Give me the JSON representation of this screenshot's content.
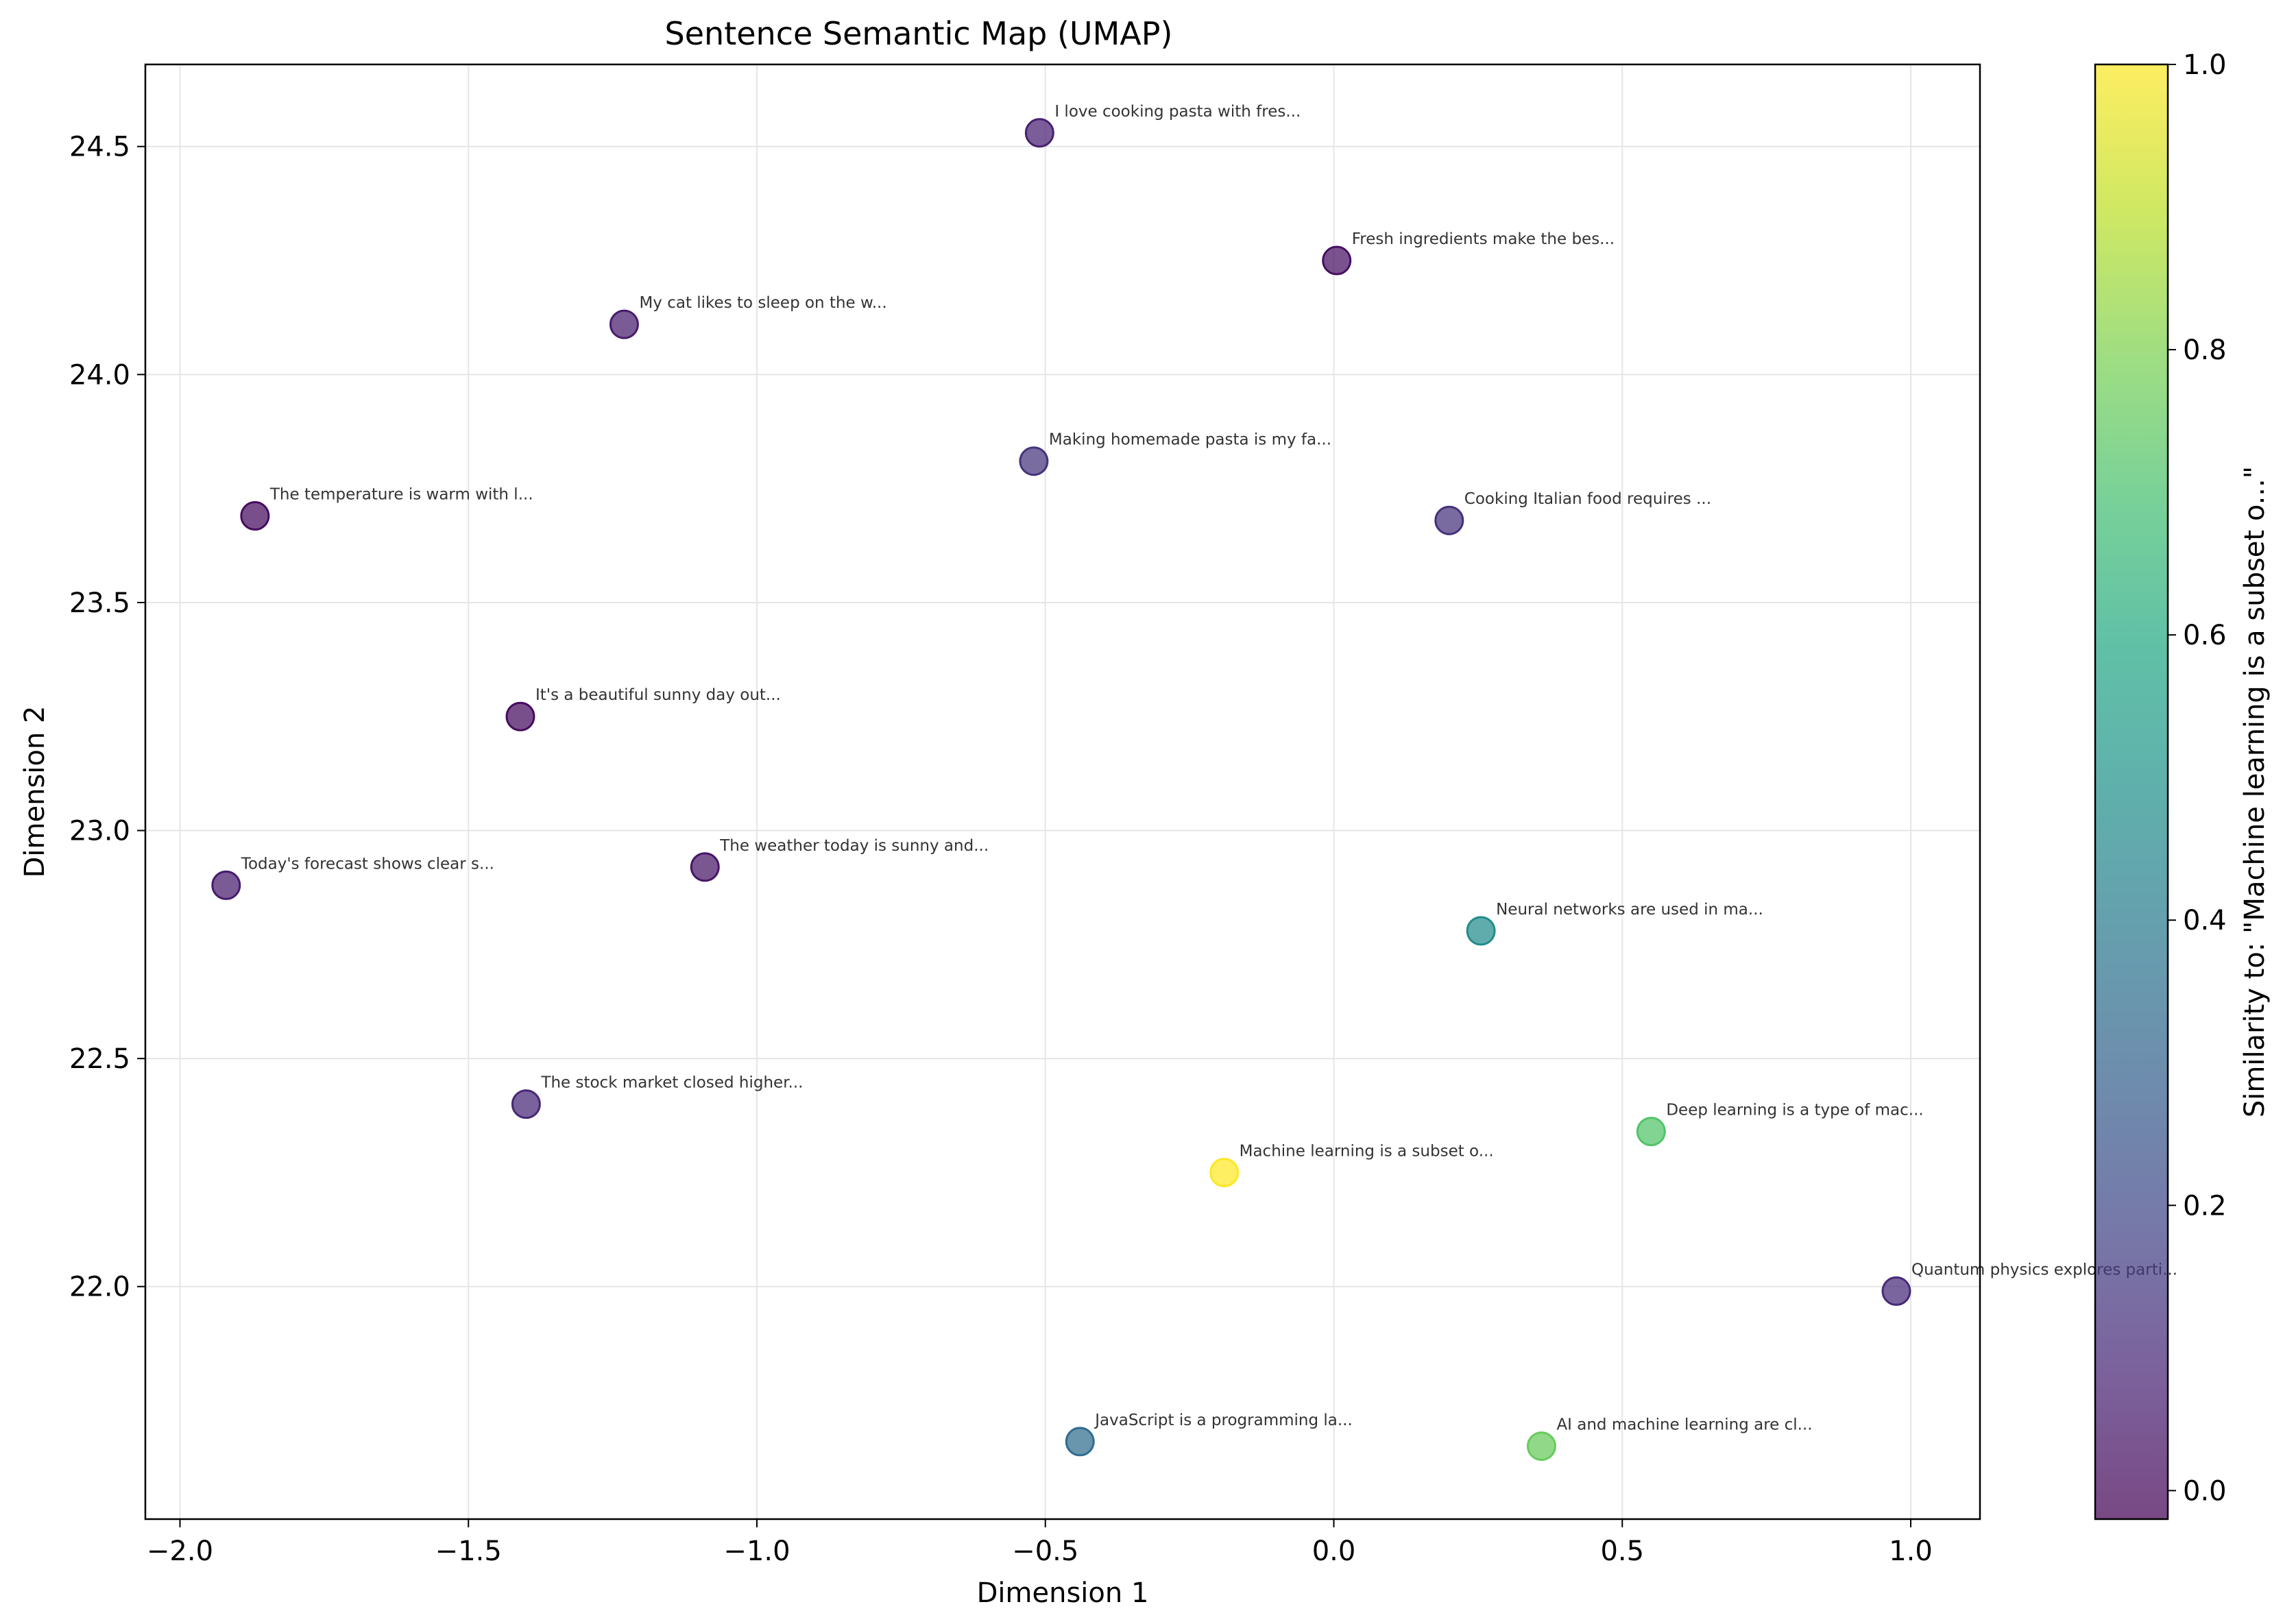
{
  "chart_data": {
    "type": "scatter",
    "title": "Sentence Semantic Map (UMAP)",
    "xlabel": "Dimension 1",
    "ylabel": "Dimension 2",
    "xlim": [
      -2.06,
      1.12
    ],
    "ylim": [
      21.49,
      24.68
    ],
    "xticks": [
      -2.0,
      -1.5,
      -1.0,
      -0.5,
      0.0,
      0.5,
      1.0
    ],
    "xtick_labels": [
      "−2.0",
      "−1.5",
      "−1.0",
      "−0.5",
      "0.0",
      "0.5",
      "1.0"
    ],
    "yticks": [
      22.0,
      22.5,
      23.0,
      23.5,
      24.0,
      24.5
    ],
    "ytick_labels": [
      "22.0",
      "22.5",
      "23.0",
      "23.5",
      "24.0",
      "24.5"
    ],
    "grid": true,
    "colormap": "viridis",
    "colorbar": {
      "label": "Similarity to: \"Machine learning is a subset o...\"",
      "range": [
        -0.02,
        1.0
      ],
      "ticks": [
        0.0,
        0.2,
        0.4,
        0.6,
        0.8,
        1.0
      ],
      "tick_labels": [
        "0.0",
        "0.2",
        "0.4",
        "0.6",
        "0.8",
        "1.0"
      ]
    },
    "points": [
      {
        "x": -0.51,
        "y": 24.53,
        "sim": 0.07,
        "label": "I love cooking pasta with fres..."
      },
      {
        "x": 0.005,
        "y": 24.25,
        "sim": 0.02,
        "label": "Fresh ingredients make the bes..."
      },
      {
        "x": -1.23,
        "y": 24.11,
        "sim": 0.06,
        "label": "My cat likes to sleep on the w..."
      },
      {
        "x": -0.52,
        "y": 23.81,
        "sim": 0.13,
        "label": "Making homemade pasta is my fa..."
      },
      {
        "x": -1.87,
        "y": 23.69,
        "sim": 0.01,
        "label": "The temperature is warm with l..."
      },
      {
        "x": 0.2,
        "y": 23.68,
        "sim": 0.12,
        "label": "Cooking Italian food requires ..."
      },
      {
        "x": -1.41,
        "y": 23.25,
        "sim": 0.01,
        "label": "It's a beautiful sunny day out..."
      },
      {
        "x": -1.09,
        "y": 22.92,
        "sim": 0.04,
        "label": "The weather today is sunny and..."
      },
      {
        "x": -1.92,
        "y": 22.88,
        "sim": 0.06,
        "label": "Today's forecast shows clear s..."
      },
      {
        "x": 0.255,
        "y": 22.78,
        "sim": 0.47,
        "label": "Neural networks are used in ma..."
      },
      {
        "x": -1.4,
        "y": 22.4,
        "sim": 0.09,
        "label": "The stock market closed higher..."
      },
      {
        "x": 0.55,
        "y": 22.34,
        "sim": 0.72,
        "label": "Deep learning is a type of mac..."
      },
      {
        "x": -0.19,
        "y": 22.25,
        "sim": 1.0,
        "label": "Machine learning is a subset o..."
      },
      {
        "x": 0.975,
        "y": 21.99,
        "sim": 0.1,
        "label": "Quantum physics explores parti..."
      },
      {
        "x": -0.44,
        "y": 21.66,
        "sim": 0.34,
        "label": "JavaScript is a programming la..."
      },
      {
        "x": 0.36,
        "y": 21.65,
        "sim": 0.76,
        "label": "AI and machine learning are cl..."
      }
    ]
  }
}
